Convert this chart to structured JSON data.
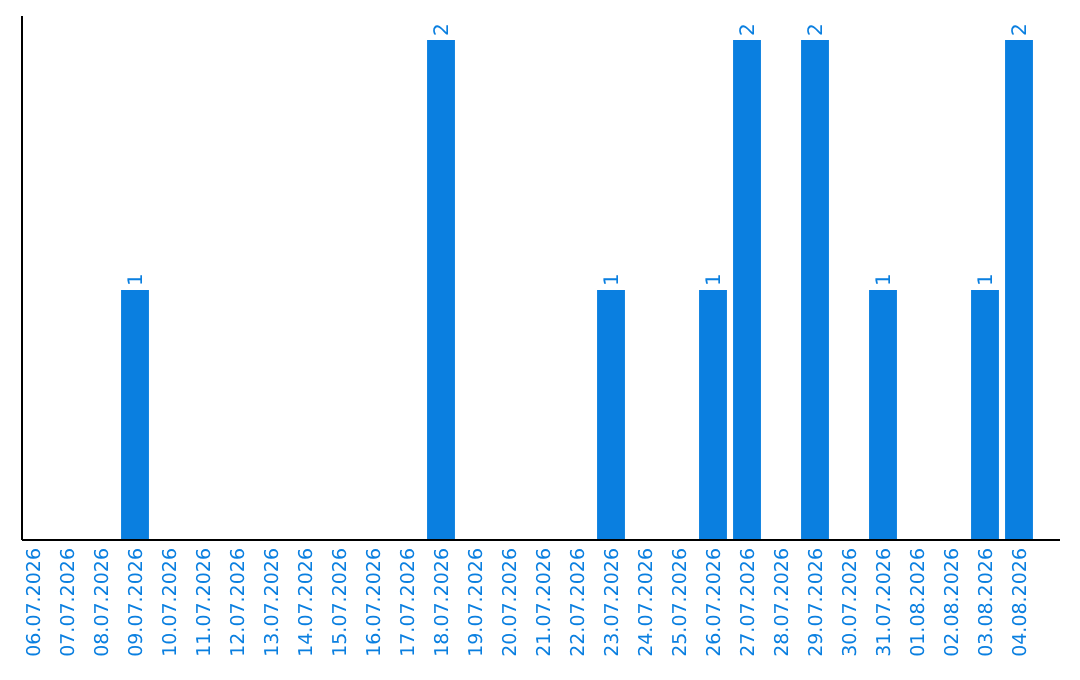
{
  "chart_data": {
    "type": "bar",
    "categories": [
      "06.07.2026",
      "07.07.2026",
      "08.07.2026",
      "09.07.2026",
      "10.07.2026",
      "11.07.2026",
      "12.07.2026",
      "13.07.2026",
      "14.07.2026",
      "15.07.2026",
      "16.07.2026",
      "17.07.2026",
      "18.07.2026",
      "19.07.2026",
      "20.07.2026",
      "21.07.2026",
      "22.07.2026",
      "23.07.2026",
      "24.07.2026",
      "25.07.2026",
      "26.07.2026",
      "27.07.2026",
      "28.07.2026",
      "29.07.2026",
      "30.07.2026",
      "31.07.2026",
      "01.08.2026",
      "02.08.2026",
      "03.08.2026",
      "04.08.2026"
    ],
    "values": [
      0,
      0,
      0,
      1,
      0,
      0,
      0,
      0,
      0,
      0,
      0,
      0,
      2,
      0,
      0,
      0,
      0,
      1,
      0,
      0,
      1,
      2,
      0,
      2,
      0,
      1,
      0,
      0,
      1,
      2
    ],
    "value_labels": [
      null,
      null,
      null,
      "1",
      null,
      null,
      null,
      null,
      null,
      null,
      null,
      null,
      "2",
      null,
      null,
      null,
      null,
      "1",
      null,
      null,
      "1",
      "2",
      null,
      "2",
      null,
      "1",
      null,
      null,
      "1",
      "2"
    ],
    "color": "#0a7fe0"
  }
}
